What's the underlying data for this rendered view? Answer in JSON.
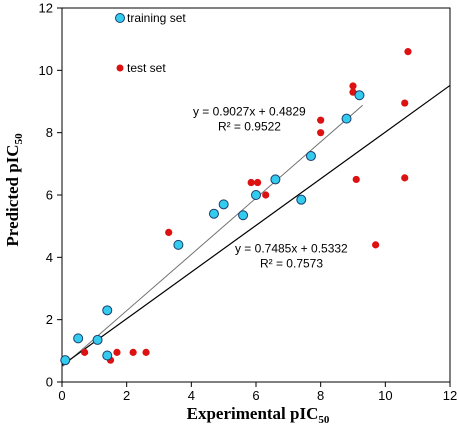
{
  "chart_data": {
    "type": "scatter",
    "xlabel": {
      "main": "Experimental  pIC",
      "sub": "50"
    },
    "ylabel": {
      "main": "Predicted pIC",
      "sub": "50"
    },
    "xlim": [
      0,
      12
    ],
    "ylim": [
      0,
      12
    ],
    "x_ticks": [
      "0",
      "2",
      "4",
      "6",
      "8",
      "10",
      "12"
    ],
    "y_ticks": [
      "0",
      "2",
      "4",
      "6",
      "8",
      "10",
      "12"
    ],
    "grid": false,
    "legend_position": "top-left",
    "series": [
      {
        "name": "training set",
        "color": "#33ccee",
        "points": [
          [
            0.1,
            0.7
          ],
          [
            0.5,
            1.4
          ],
          [
            1.1,
            1.35
          ],
          [
            1.4,
            2.3
          ],
          [
            1.4,
            0.85
          ],
          [
            3.6,
            4.4
          ],
          [
            4.7,
            5.4
          ],
          [
            5.0,
            5.7
          ],
          [
            5.6,
            5.35
          ],
          [
            6.0,
            6.0
          ],
          [
            6.6,
            6.5
          ],
          [
            7.4,
            5.85
          ],
          [
            7.7,
            7.25
          ],
          [
            8.8,
            8.45
          ],
          [
            9.2,
            9.2
          ]
        ]
      },
      {
        "name": "test set",
        "color": "#dd1111",
        "points": [
          [
            0.7,
            0.95
          ],
          [
            1.5,
            0.7
          ],
          [
            1.7,
            0.95
          ],
          [
            2.2,
            0.95
          ],
          [
            2.6,
            0.95
          ],
          [
            3.3,
            4.8
          ],
          [
            5.85,
            6.4
          ],
          [
            6.05,
            6.4
          ],
          [
            6.3,
            6.0
          ],
          [
            8.0,
            8.4
          ],
          [
            8.0,
            8.0
          ],
          [
            9.0,
            9.5
          ],
          [
            9.0,
            9.3
          ],
          [
            9.1,
            6.5
          ],
          [
            9.7,
            4.4
          ],
          [
            10.6,
            8.95
          ],
          [
            10.6,
            6.55
          ],
          [
            10.7,
            10.6
          ]
        ]
      }
    ],
    "fit_lines": [
      {
        "slope": 0.9027,
        "intercept": 0.4829,
        "x_range": [
          0.0,
          9.3
        ],
        "color": "#707070",
        "width": 1,
        "equation": "y = 0.9027x + 0.4829",
        "r2": "R² = 0.9522",
        "label_at": [
          4.05,
          8.55
        ]
      },
      {
        "slope": 0.7485,
        "intercept": 0.5332,
        "x_range": [
          0.0,
          12.0
        ],
        "color": "#000000",
        "width": 1.2,
        "equation": "y = 0.7485x + 0.5332",
        "r2": "R² = 0.7573",
        "label_at": [
          5.35,
          4.15
        ]
      }
    ]
  }
}
